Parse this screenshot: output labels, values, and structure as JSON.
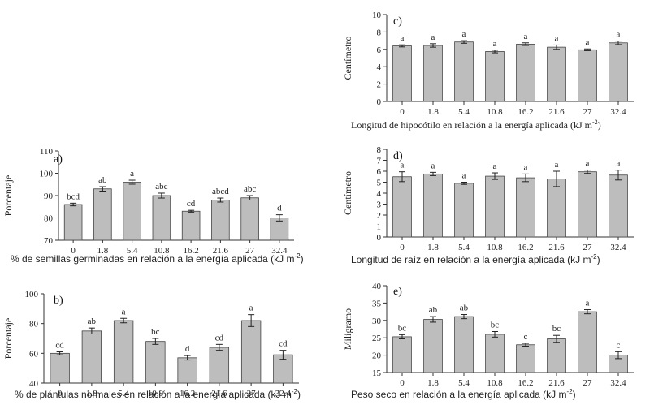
{
  "chart_data": [
    {
      "id": "a",
      "type": "bar",
      "panel_label": "a)",
      "categories": [
        "0",
        "1.8",
        "5.4",
        "10.8",
        "16.2",
        "21.6",
        "27",
        "32.4"
      ],
      "values": [
        86,
        93,
        96,
        90,
        83,
        88,
        89,
        80
      ],
      "errors": [
        0.6,
        1.0,
        0.9,
        1.1,
        0.4,
        0.9,
        1.0,
        1.4
      ],
      "letters": [
        "bcd",
        "ab",
        "a",
        "abc",
        "cd",
        "abcd",
        "abc",
        "d"
      ],
      "ylabel": "Porcentaje",
      "xlabel": "% de semillas germinadas en relación a la energía aplicada (kJ m",
      "xlabel_sup": "-2",
      "xlabel_close": ")",
      "ylim": [
        70,
        110
      ],
      "yticks": [
        70,
        80,
        90,
        100,
        110
      ]
    },
    {
      "id": "b",
      "type": "bar",
      "panel_label": "b)",
      "categories": [
        "0",
        "1.8",
        "5.4",
        "10.8",
        "16.2",
        "21.6",
        "27",
        "32.4"
      ],
      "values": [
        60,
        75,
        82,
        68,
        57,
        64,
        82,
        59
      ],
      "errors": [
        1.0,
        2.0,
        1.5,
        2.0,
        1.5,
        2.0,
        4.0,
        3.0
      ],
      "letters": [
        "cd",
        "ab",
        "a",
        "bc",
        "d",
        "cd",
        "a",
        "cd"
      ],
      "ylabel": "Porcentaje",
      "xlabel": "% de plántulas normales en relación a la energía aplicada (kJ m",
      "xlabel_sup": "-2",
      "xlabel_close": ")",
      "ylim": [
        40,
        100
      ],
      "yticks": [
        40,
        60,
        80,
        100
      ]
    },
    {
      "id": "c",
      "type": "bar",
      "panel_label": "c)",
      "categories": [
        "0",
        "1.8",
        "5.4",
        "10.8",
        "16.2",
        "21.6",
        "27",
        "32.4"
      ],
      "values": [
        6.4,
        6.45,
        6.85,
        5.75,
        6.6,
        6.25,
        5.95,
        6.75
      ],
      "errors": [
        0.12,
        0.2,
        0.15,
        0.15,
        0.15,
        0.25,
        0.1,
        0.2
      ],
      "letters": [
        "a",
        "a",
        "a",
        "a",
        "a",
        "a",
        "a",
        "a"
      ],
      "ylabel": "Centímetro",
      "xlabel": "Longitud de hipocótilo en relación a la energía aplicada (kJ m",
      "xlabel_sup": "-2",
      "xlabel_close": ")",
      "ylim": [
        0,
        10
      ],
      "yticks": [
        0,
        2,
        4,
        6,
        8,
        10
      ]
    },
    {
      "id": "d",
      "type": "bar",
      "panel_label": "d)",
      "categories": [
        "0",
        "1.8",
        "5.4",
        "10.8",
        "16.2",
        "21.6",
        "27",
        "32.4"
      ],
      "values": [
        5.5,
        5.75,
        4.9,
        5.55,
        5.4,
        5.3,
        5.95,
        5.65
      ],
      "errors": [
        0.45,
        0.15,
        0.1,
        0.3,
        0.35,
        0.7,
        0.15,
        0.45
      ],
      "letters": [
        "a",
        "a",
        "a",
        "a",
        "a",
        "a",
        "a",
        "a"
      ],
      "ylabel": "Centímetro",
      "xlabel": "Longitud de raíz en relación a la energía aplicada (kJ m",
      "xlabel_sup": "-2",
      "xlabel_close": ")",
      "ylim": [
        0,
        8
      ],
      "yticks": [
        0,
        1,
        2,
        3,
        4,
        5,
        6,
        7,
        8
      ]
    },
    {
      "id": "e",
      "type": "bar",
      "panel_label": "e)",
      "categories": [
        "0",
        "1.8",
        "5.4",
        "10.8",
        "16.2",
        "21.6",
        "27",
        "32.4"
      ],
      "values": [
        25.3,
        30.3,
        31.1,
        26.0,
        23.0,
        24.7,
        32.5,
        20.0
      ],
      "errors": [
        0.6,
        0.8,
        0.6,
        0.8,
        0.4,
        1.0,
        0.6,
        1.0
      ],
      "letters": [
        "bc",
        "ab",
        "ab",
        "bc",
        "c",
        "bc",
        "a",
        "c"
      ],
      "ylabel": "Miligramo",
      "xlabel": "Peso seco en relación a la energía aplicada (kJ m",
      "xlabel_sup": "-2",
      "xlabel_close": ")",
      "ylim": [
        15,
        40
      ],
      "yticks": [
        15,
        20,
        25,
        30,
        35,
        40
      ]
    }
  ]
}
